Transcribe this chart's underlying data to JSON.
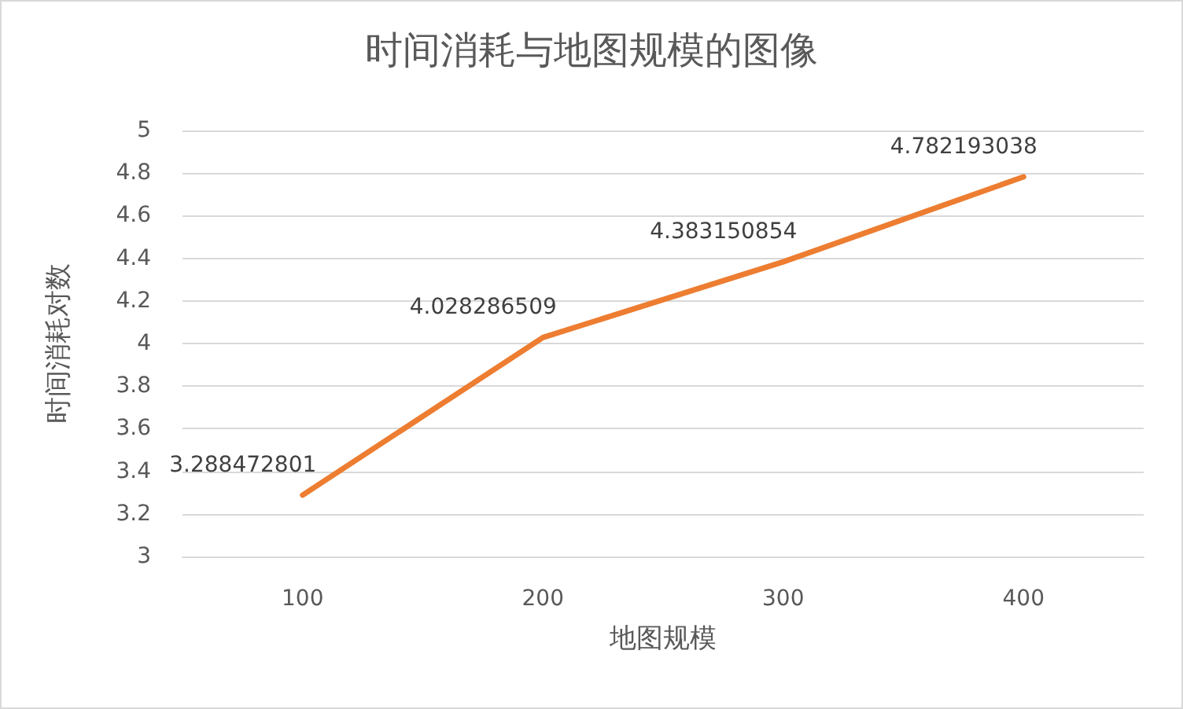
{
  "chart_data": {
    "type": "line",
    "title": "时间消耗与地图规模的图像",
    "xlabel": "地图规模",
    "ylabel": "时间消耗对数",
    "categories": [
      "100",
      "200",
      "300",
      "400"
    ],
    "series": [
      {
        "color": "#ed7d31",
        "values": [
          3.288472801,
          4.028286509,
          4.383150854,
          4.782193038
        ]
      }
    ],
    "ylim": [
      3,
      5
    ],
    "yticks": [
      3,
      3.2,
      3.4,
      3.6,
      3.8,
      4,
      4.2,
      4.4,
      4.6,
      4.8,
      5
    ],
    "grid": "y",
    "marker": "none",
    "line_style": "solid",
    "data_labels": true
  }
}
